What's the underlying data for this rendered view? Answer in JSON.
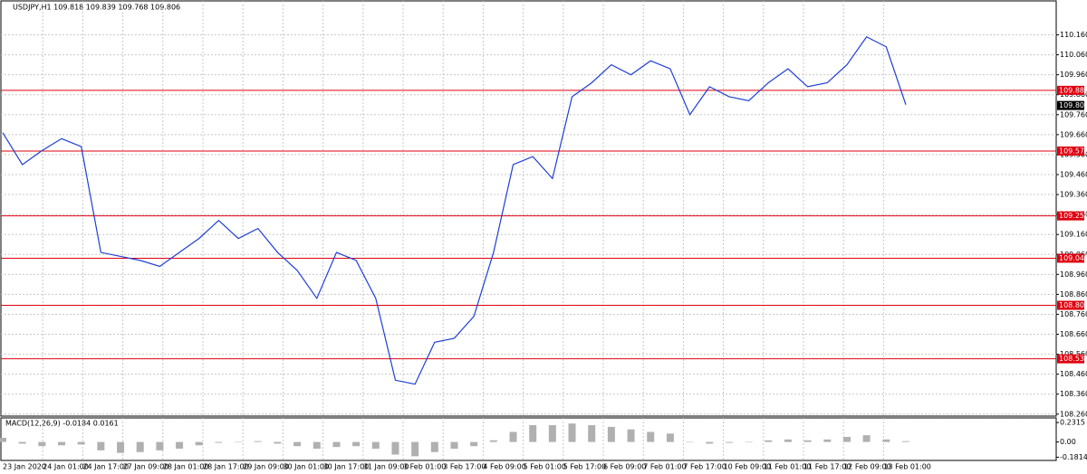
{
  "chart_data": {
    "type": "line",
    "title": "USDJPY,H1  109.818 109.839 109.768 109.806",
    "series": [
      {
        "name": "USDJPY,H1",
        "color": "#1f3fd6",
        "values": [
          109.67,
          109.51,
          109.58,
          109.64,
          109.6,
          109.07,
          109.05,
          109.03,
          109.0,
          109.07,
          109.14,
          109.23,
          109.14,
          109.19,
          109.07,
          108.98,
          108.84,
          109.07,
          109.03,
          108.84,
          108.43,
          108.41,
          108.62,
          108.64,
          108.75,
          109.07,
          109.51,
          109.55,
          109.44,
          109.85,
          109.92,
          110.01,
          109.96,
          110.03,
          109.99,
          109.76,
          109.9,
          109.85,
          109.83,
          109.92,
          109.99,
          109.9,
          109.92,
          110.01,
          110.15,
          110.1,
          109.81
        ]
      }
    ],
    "ylim": [
      108.25,
      110.33
    ],
    "yticks": [
      {
        "value": 110.16,
        "label": "110.160"
      },
      {
        "value": 110.06,
        "label": "110.060"
      },
      {
        "value": 109.96,
        "label": "109.960"
      },
      {
        "value": 109.86,
        "label": "109.860"
      },
      {
        "value": 109.76,
        "label": "109.760"
      },
      {
        "value": 109.66,
        "label": "109.660"
      },
      {
        "value": 109.56,
        "label": "109.560"
      },
      {
        "value": 109.46,
        "label": "109.460"
      },
      {
        "value": 109.36,
        "label": "109.360"
      },
      {
        "value": 109.26,
        "label": "109.260"
      },
      {
        "value": 109.16,
        "label": "109.160"
      },
      {
        "value": 109.06,
        "label": "109.060"
      },
      {
        "value": 108.96,
        "label": "108.960"
      },
      {
        "value": 108.86,
        "label": "108.860"
      },
      {
        "value": 108.76,
        "label": "108.760"
      },
      {
        "value": 108.66,
        "label": "108.660"
      },
      {
        "value": 108.56,
        "label": "108.560"
      },
      {
        "value": 108.46,
        "label": "108.460"
      },
      {
        "value": 108.36,
        "label": "108.360"
      },
      {
        "value": 108.26,
        "label": "108.260"
      }
    ],
    "levels": [
      109.882,
      109.578,
      109.253,
      109.041,
      108.805,
      108.537
    ],
    "level_color": "#e0000f",
    "current_price": 109.806,
    "xlabels": [
      "23 Jan 2020",
      "24 Jan 01:00",
      "24 Jan 17:00",
      "27 Jan 09:00",
      "28 Jan 01:00",
      "28 Jan 17:00",
      "29 Jan 09:00",
      "30 Jan 01:00",
      "30 Jan 17:00",
      "31 Jan 09:00",
      "3 Feb 01:00",
      "3 Feb 17:00",
      "4 Feb 09:00",
      "5 Feb 01:00",
      "5 Feb 17:00",
      "6 Feb 09:00",
      "7 Feb 01:00",
      "7 Feb 17:00",
      "10 Feb 09:00",
      "11 Feb 01:00",
      "11 Feb 17:00",
      "12 Feb 09:00",
      "13 Feb 01:00"
    ],
    "grid": true,
    "macd": {
      "title": "MACD(12,26,9) -0.0184 0.0161",
      "color": "#b0b0b0",
      "values": [
        0.05,
        -0.02,
        -0.05,
        -0.04,
        -0.03,
        -0.1,
        -0.13,
        -0.12,
        -0.1,
        -0.08,
        -0.04,
        -0.01,
        0.0,
        0.01,
        -0.02,
        -0.05,
        -0.08,
        -0.06,
        -0.05,
        -0.08,
        -0.15,
        -0.17,
        -0.12,
        -0.08,
        -0.05,
        0.02,
        0.12,
        0.2,
        0.2,
        0.22,
        0.2,
        0.18,
        0.15,
        0.12,
        0.1,
        0.0,
        -0.02,
        -0.01,
        0.0,
        0.02,
        0.03,
        0.02,
        0.03,
        0.06,
        0.08,
        0.03,
        0.01
      ],
      "ylim": [
        -0.22,
        0.2866
      ],
      "yticks": [
        0.2315,
        {
          "value": 0,
          "label": "0.00"
        },
        -0.1814
      ]
    }
  }
}
